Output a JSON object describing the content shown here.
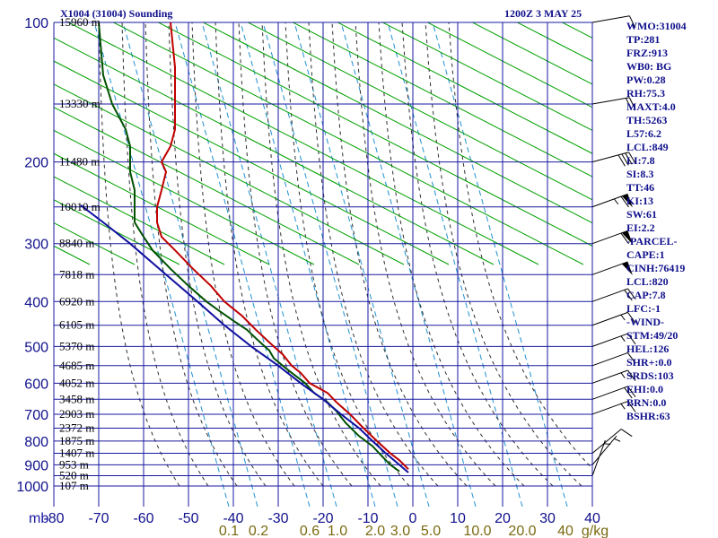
{
  "header": {
    "station": "X1004 (31004) Sounding",
    "time": "1200Z  3 MAY 25"
  },
  "indices": [
    "WMO:31004",
    "TP:281",
    "FRZ:913",
    "WB0: BG",
    "PW:0.28",
    "RH:75.3",
    "MAXT:4.0",
    "TH:5263",
    "L57:6.2",
    "LCL:849",
    "LI:7.8",
    "SI:8.3",
    "TT:46",
    "KI:13",
    "SW:61",
    "EI:2.2",
    "-PARCEL-",
    "CAPE:1",
    "CINH:76419",
    "LCL:820",
    "CAP:7.8",
    "LFC:-1",
    "-WIND-",
    "STM:49/20",
    "HEL:126",
    "SHR+:0.0",
    "SRDS:103",
    "EHI:0.0",
    "BRN:0.0",
    "BSHR:63"
  ],
  "colors": {
    "grid": "#1a1aa0",
    "dry_adiabat": "#00a000",
    "moist_adiabat": "#303030",
    "mixing_ratio": "#2090d0",
    "temperature": "#c00000",
    "dewpoint": "#005000",
    "parcel": "#1010a0",
    "label": "#10108c",
    "mixing_label": "#7a6a10"
  },
  "chart_data": {
    "type": "line",
    "title": "X1004 (31004) Sounding",
    "subtitle": "1200Z  3 MAY 25",
    "ylabel": "mb",
    "pressure_levels": [
      100,
      200,
      300,
      400,
      500,
      600,
      700,
      800,
      900,
      1000
    ],
    "temp_ticks": [
      -80,
      -70,
      -60,
      -50,
      -40,
      -30,
      -20,
      -10,
      0,
      10,
      20,
      30,
      40
    ],
    "xlim": [
      -80,
      40
    ],
    "height_labels": [
      {
        "p": 100,
        "label": "15960 m"
      },
      {
        "p": 150,
        "label": "13330 m"
      },
      {
        "p": 200,
        "label": "11480 m"
      },
      {
        "p": 250,
        "label": "10010 m"
      },
      {
        "p": 300,
        "label": "8840 m"
      },
      {
        "p": 350,
        "label": "7818 m"
      },
      {
        "p": 400,
        "label": "6920 m"
      },
      {
        "p": 450,
        "label": "6105 m"
      },
      {
        "p": 500,
        "label": "5370 m"
      },
      {
        "p": 550,
        "label": "4685 m"
      },
      {
        "p": 600,
        "label": "4052 m"
      },
      {
        "p": 650,
        "label": "3458 m"
      },
      {
        "p": 700,
        "label": "2903 m"
      },
      {
        "p": 750,
        "label": "2372 m"
      },
      {
        "p": 800,
        "label": "1875 m"
      },
      {
        "p": 850,
        "label": "1407 m"
      },
      {
        "p": 900,
        "label": "953 m"
      },
      {
        "p": 950,
        "label": "520 m"
      },
      {
        "p": 1000,
        "label": "107 m"
      }
    ],
    "mixing_ratio_labels": [
      "0.1",
      "0.2",
      "0.6",
      "1.0",
      "2.0",
      "3.0",
      "5.0",
      "10.0",
      "20.0",
      "40",
      "g/kg"
    ],
    "series": [
      {
        "key": "temperature",
        "points": [
          [
            920,
            -1
          ],
          [
            880,
            -3
          ],
          [
            850,
            -5
          ],
          [
            800,
            -8
          ],
          [
            750,
            -11
          ],
          [
            700,
            -14
          ],
          [
            660,
            -17
          ],
          [
            630,
            -19
          ],
          [
            600,
            -23
          ],
          [
            570,
            -25
          ],
          [
            550,
            -27
          ],
          [
            520,
            -29
          ],
          [
            500,
            -31
          ],
          [
            460,
            -35
          ],
          [
            430,
            -38
          ],
          [
            400,
            -42
          ],
          [
            370,
            -45
          ],
          [
            340,
            -49
          ],
          [
            310,
            -53
          ],
          [
            290,
            -56
          ],
          [
            270,
            -57
          ],
          [
            250,
            -57
          ],
          [
            230,
            -56
          ],
          [
            210,
            -55
          ],
          [
            200,
            -56
          ],
          [
            185,
            -54
          ],
          [
            170,
            -53
          ],
          [
            150,
            -53
          ],
          [
            125,
            -53
          ],
          [
            100,
            -54
          ]
        ]
      },
      {
        "key": "dewpoint",
        "points": [
          [
            930,
            -3
          ],
          [
            900,
            -5
          ],
          [
            860,
            -7
          ],
          [
            820,
            -9
          ],
          [
            780,
            -12
          ],
          [
            730,
            -15
          ],
          [
            690,
            -17
          ],
          [
            660,
            -19
          ],
          [
            630,
            -22
          ],
          [
            600,
            -24
          ],
          [
            570,
            -27
          ],
          [
            550,
            -29
          ],
          [
            530,
            -31
          ],
          [
            510,
            -32
          ],
          [
            500,
            -33
          ],
          [
            480,
            -35
          ],
          [
            460,
            -37
          ],
          [
            440,
            -40
          ],
          [
            420,
            -43
          ],
          [
            400,
            -46
          ],
          [
            370,
            -50
          ],
          [
            340,
            -54
          ],
          [
            310,
            -58
          ],
          [
            290,
            -60
          ],
          [
            270,
            -62
          ],
          [
            250,
            -62
          ],
          [
            230,
            -62
          ],
          [
            210,
            -63
          ],
          [
            200,
            -63
          ],
          [
            185,
            -63
          ],
          [
            170,
            -64
          ],
          [
            150,
            -67
          ],
          [
            130,
            -69
          ],
          [
            100,
            -70
          ]
        ]
      },
      {
        "key": "parcel",
        "points": [
          [
            935,
            -1
          ],
          [
            900,
            -3
          ],
          [
            850,
            -6
          ],
          [
            800,
            -9
          ],
          [
            750,
            -12
          ],
          [
            700,
            -16
          ],
          [
            650,
            -20
          ],
          [
            600,
            -25
          ],
          [
            550,
            -30
          ],
          [
            500,
            -36
          ],
          [
            450,
            -42
          ],
          [
            400,
            -48
          ],
          [
            350,
            -55
          ],
          [
            300,
            -63
          ],
          [
            270,
            -69
          ],
          [
            248,
            -74
          ]
        ]
      }
    ],
    "wind_barbs": [
      {
        "p": 100,
        "dir": 260,
        "spd": 10
      },
      {
        "p": 150,
        "dir": 260,
        "spd": 20
      },
      {
        "p": 200,
        "dir": 255,
        "spd": 40
      },
      {
        "p": 250,
        "dir": 250,
        "spd": 65
      },
      {
        "p": 300,
        "dir": 250,
        "spd": 60
      },
      {
        "p": 350,
        "dir": 250,
        "spd": 50
      },
      {
        "p": 400,
        "dir": 250,
        "spd": 20
      },
      {
        "p": 450,
        "dir": 250,
        "spd": 15
      },
      {
        "p": 500,
        "dir": 250,
        "spd": 15
      },
      {
        "p": 550,
        "dir": 250,
        "spd": 10
      },
      {
        "p": 600,
        "dir": 250,
        "spd": 15
      },
      {
        "p": 650,
        "dir": 250,
        "spd": 20
      },
      {
        "p": 700,
        "dir": 250,
        "spd": 15
      },
      {
        "p": 850,
        "dir": 230,
        "spd": 10
      },
      {
        "p": 900,
        "dir": 220,
        "spd": 5
      },
      {
        "p": 950,
        "dir": 200,
        "spd": 5
      }
    ],
    "grid": true,
    "legend": "none"
  }
}
